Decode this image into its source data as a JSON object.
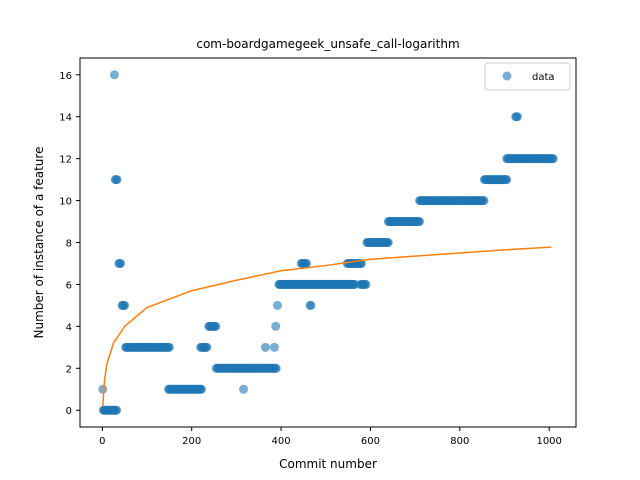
{
  "chart_data": {
    "type": "scatter",
    "title": "com-boardgamegeek_unsafe_call-logarithm",
    "xlabel": "Commit number",
    "ylabel": "Number of instance of a feature",
    "xlim": [
      -50,
      1060
    ],
    "ylim": [
      -0.8,
      16.8
    ],
    "xticks": [
      0,
      200,
      400,
      600,
      800,
      1000
    ],
    "yticks": [
      0,
      2,
      4,
      6,
      8,
      10,
      12,
      14,
      16
    ],
    "grid": false,
    "legend_position": "top-right",
    "legend": [
      "data"
    ],
    "colors": {
      "data": "#1f77b4",
      "fit": "#ff7f0e"
    },
    "series": [
      {
        "name": "data",
        "kind": "points",
        "segments": [
          {
            "y": 0,
            "x": [
              2,
              32
            ]
          },
          {
            "y": 1,
            "x": [
              1,
              1
            ]
          },
          {
            "y": 16,
            "x": [
              27,
              27
            ]
          },
          {
            "y": 11,
            "x": [
              29,
              33
            ]
          },
          {
            "y": 7,
            "x": [
              37,
              42
            ]
          },
          {
            "y": 5,
            "x": [
              44,
              50
            ]
          },
          {
            "y": 3,
            "x": [
              52,
              150
            ]
          },
          {
            "y": 1,
            "x": [
              148,
              222
            ]
          },
          {
            "y": 3,
            "x": [
              220,
              235
            ]
          },
          {
            "y": 4,
            "x": [
              238,
              255
            ]
          },
          {
            "y": 2,
            "x": [
              255,
              390
            ]
          },
          {
            "y": 1,
            "x": [
              316,
              316
            ]
          },
          {
            "y": 3,
            "x": [
              365,
              365
            ]
          },
          {
            "y": 3,
            "x": [
              385,
              385
            ]
          },
          {
            "y": 4,
            "x": [
              388,
              388
            ]
          },
          {
            "y": 5,
            "x": [
              392,
              392
            ]
          },
          {
            "y": 6,
            "x": [
              395,
              565
            ]
          },
          {
            "y": 7,
            "x": [
              445,
              458
            ]
          },
          {
            "y": 5,
            "x": [
              465,
              468
            ]
          },
          {
            "y": 7,
            "x": [
              548,
              580
            ]
          },
          {
            "y": 6,
            "x": [
              578,
              590
            ]
          },
          {
            "y": 8,
            "x": [
              592,
              640
            ]
          },
          {
            "y": 9,
            "x": [
              640,
              710
            ]
          },
          {
            "y": 10,
            "x": [
              710,
              855
            ]
          },
          {
            "y": 11,
            "x": [
              855,
              905
            ]
          },
          {
            "y": 12,
            "x": [
              905,
              1010
            ]
          },
          {
            "y": 14,
            "x": [
              925,
              930
            ]
          }
        ]
      },
      {
        "name": "fit",
        "kind": "line",
        "model": "logarithmic",
        "points": [
          [
            1,
            0.2
          ],
          [
            5,
            1.45
          ],
          [
            10,
            2.2
          ],
          [
            25,
            3.2
          ],
          [
            50,
            4.0
          ],
          [
            100,
            4.9
          ],
          [
            200,
            5.7
          ],
          [
            300,
            6.2
          ],
          [
            400,
            6.65
          ],
          [
            500,
            6.9
          ],
          [
            600,
            7.2
          ],
          [
            700,
            7.35
          ],
          [
            800,
            7.5
          ],
          [
            900,
            7.65
          ],
          [
            1005,
            7.78
          ]
        ]
      }
    ]
  }
}
